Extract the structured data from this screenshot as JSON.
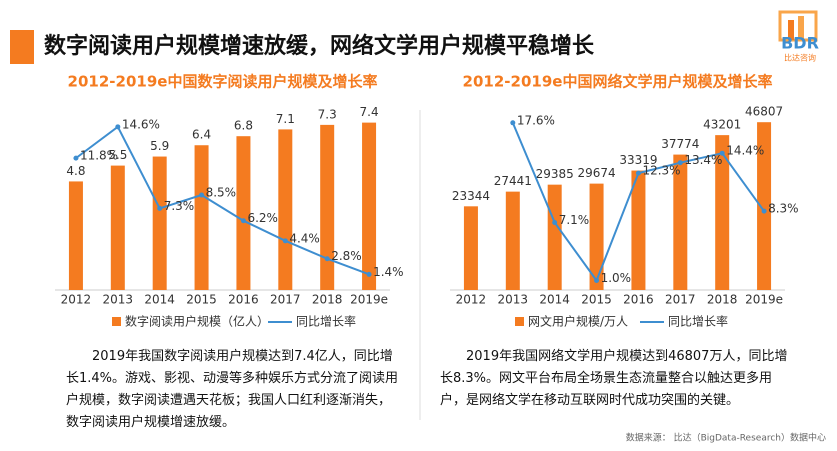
{
  "title": "数字阅读用户规模增速放缓，网络文学用户规模平稳增长",
  "logo": {
    "name": "BDR",
    "sub": "比达咨询"
  },
  "chart_data": [
    {
      "type": "combo",
      "title": "2012-2019e中国数字阅读用户规模及增长率",
      "categories": [
        "2012",
        "2013",
        "2014",
        "2015",
        "2016",
        "2017",
        "2018",
        "2019e"
      ],
      "series": [
        {
          "name": "数字阅读用户规模（亿人）",
          "color": "#f47b20",
          "kind": "bar",
          "values": [
            4.8,
            5.5,
            5.9,
            6.4,
            6.8,
            7.1,
            7.3,
            7.4
          ]
        },
        {
          "name": "同比增长率",
          "color": "#3e8ed0",
          "kind": "line",
          "axis": "y2",
          "values": [
            11.8,
            14.6,
            7.3,
            8.5,
            6.2,
            4.4,
            2.8,
            1.4
          ],
          "value_labels": [
            "11.8%",
            "14.6%",
            "7.3%",
            "8.5%",
            "6.2%",
            "4.4%",
            "2.8%",
            "1.4%"
          ]
        }
      ],
      "ylim": [
        0,
        8.4
      ],
      "y2lim": [
        0,
        17
      ]
    },
    {
      "type": "combo",
      "title": "2012-2019e中国网络文学用户规模及增长率",
      "categories": [
        "2012",
        "2013",
        "2014",
        "2015",
        "2016",
        "2017",
        "2018",
        "2019e"
      ],
      "series": [
        {
          "name": "网文用户规模/万人",
          "color": "#f47b20",
          "kind": "bar",
          "values": [
            23344,
            27441,
            29385,
            29674,
            33319,
            37774,
            43201,
            46807
          ]
        },
        {
          "name": "同比增长率",
          "color": "#3e8ed0",
          "kind": "line",
          "axis": "y2",
          "values": [
            null,
            17.6,
            7.1,
            1.0,
            12.3,
            13.4,
            14.4,
            8.3
          ],
          "value_labels": [
            null,
            "17.6%",
            "7.1%",
            "1.0%",
            "12.3%",
            "13.4%",
            "14.4%",
            "8.3%"
          ]
        }
      ],
      "ylim": [
        0,
        53000
      ],
      "y2lim": [
        0,
        20
      ]
    }
  ],
  "captions": [
    "2019年我国数字阅读用户规模达到7.4亿人，同比增长1.4%。游戏、影视、动漫等多种娱乐方式分流了阅读用户规模，数字阅读遭遇天花板；我国人口红利逐渐消失，数字阅读用户规模增速放缓。",
    "2019年我国网络文学用户规模达到46807万人，同比增长8.3%。网文平台布局全场景生态流量整合以触达更多用户，是网络文学在移动互联网时代成功突围的关键。"
  ],
  "source": "数据来源： 比达（BigData-Research）数据中心"
}
